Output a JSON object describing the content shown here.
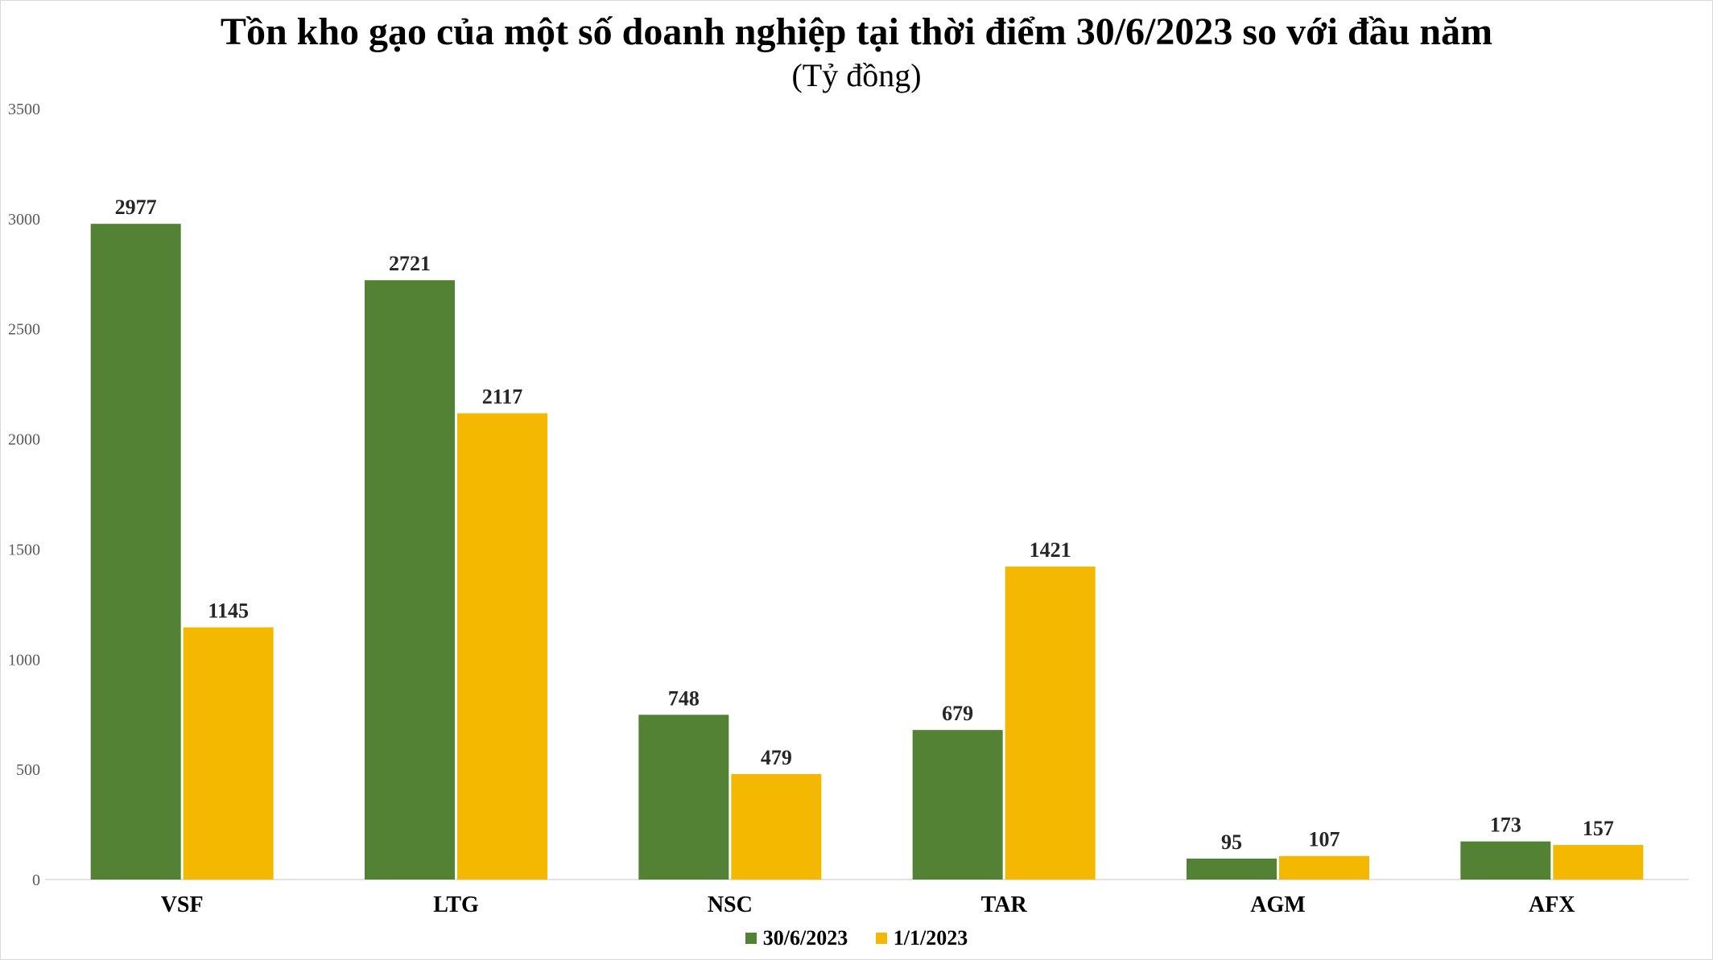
{
  "chart_data": {
    "type": "bar",
    "title": "Tồn kho gạo của một số doanh nghiệp tại thời điểm 30/6/2023 so với đầu năm",
    "subtitle": "(Tỷ đồng)",
    "xlabel": "",
    "ylabel": "",
    "ylim": [
      0,
      3500
    ],
    "yticks": [
      0,
      500,
      1000,
      1500,
      2000,
      2500,
      3000,
      3500
    ],
    "grid": false,
    "legend_position": "bottom",
    "categories": [
      "VSF",
      "LTG",
      "NSC",
      "TAR",
      "AGM",
      "AFX"
    ],
    "series": [
      {
        "name": "30/6/2023",
        "color": "#548235",
        "values": [
          2977,
          2721,
          748,
          679,
          95,
          173
        ]
      },
      {
        "name": "1/1/2023",
        "color": "#F5B800",
        "values": [
          1145,
          2117,
          479,
          1421,
          107,
          157
        ]
      }
    ]
  }
}
